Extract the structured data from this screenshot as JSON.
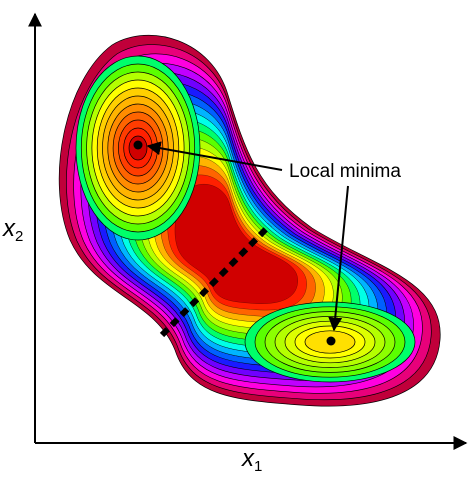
{
  "annotation": {
    "label": "Local minima"
  },
  "axes": {
    "x_label": {
      "base": "x",
      "sub": "1"
    },
    "y_label": {
      "base": "x",
      "sub": "2"
    }
  },
  "palette": [
    "#c0003a",
    "#e8007a",
    "#ff00e0",
    "#c000ff",
    "#7000ff",
    "#1a1aff",
    "#0060ff",
    "#00b4ff",
    "#00ffe6",
    "#00ff6a",
    "#5aff00",
    "#b4ff00",
    "#ffff00",
    "#ffb400",
    "#ff6400",
    "#ff2000",
    "#d00000"
  ],
  "contour_lines": "#000000",
  "saddle_line": {
    "color": "#000000",
    "style": "dotted"
  }
}
